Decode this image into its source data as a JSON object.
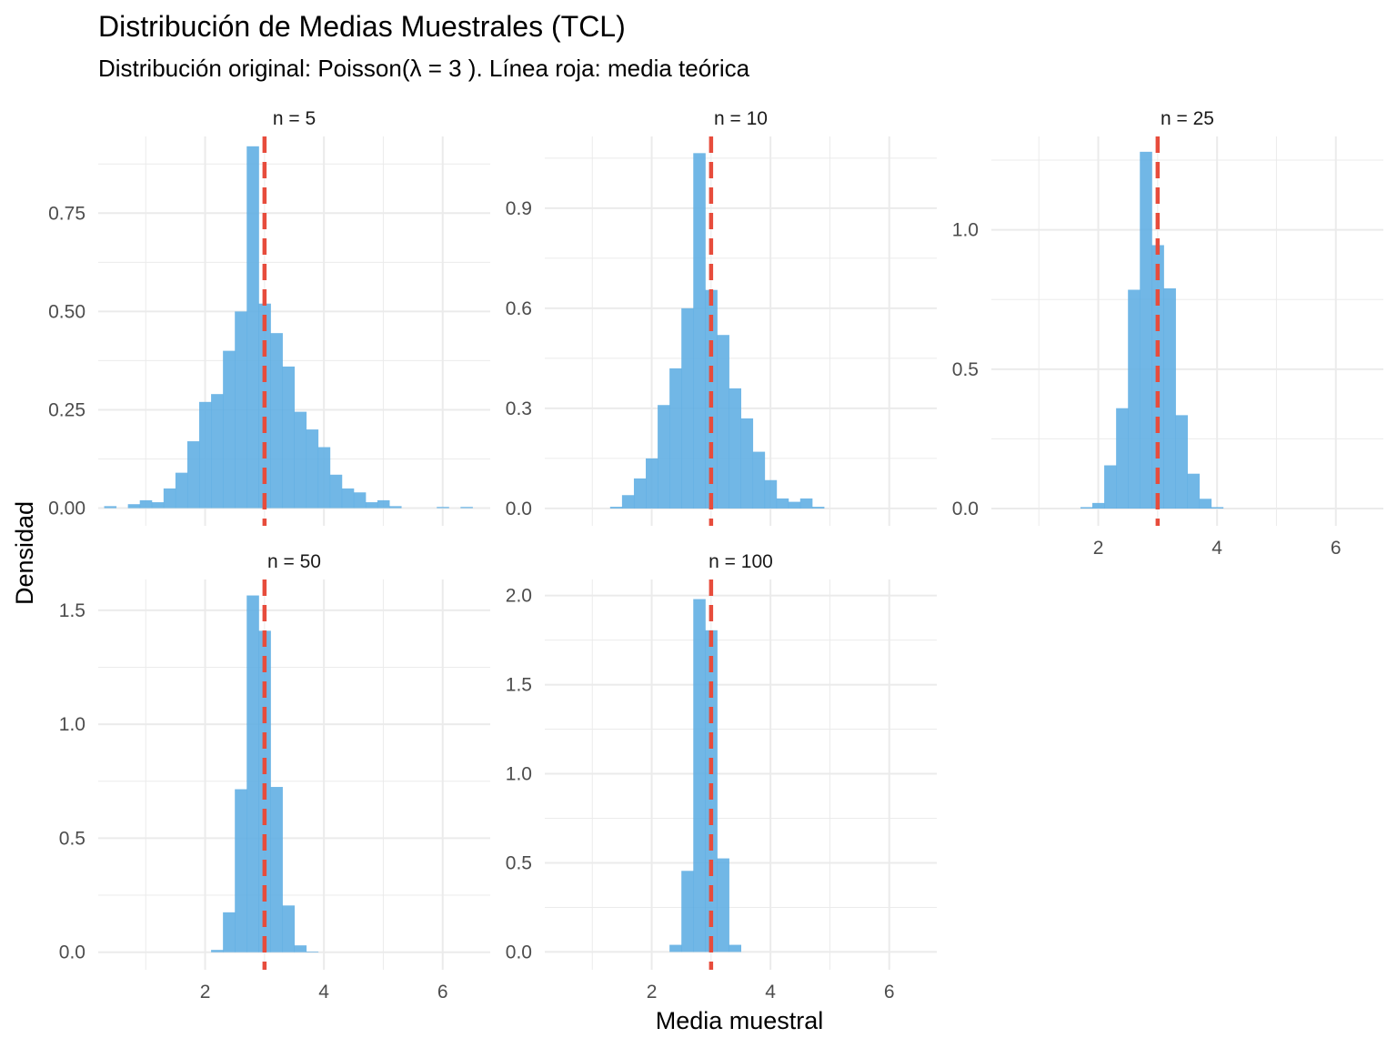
{
  "title": "Distribución de Medias Muestrales (TCL)",
  "subtitle": "Distribución original: Poisson(λ = 3 ). Línea roja: media teórica",
  "xlabel": "Media muestral",
  "ylabel": "Densidad",
  "colors": {
    "bar": "#5DADE2",
    "mean_line": "#E74C3C",
    "grid": "#ebebeb"
  },
  "chart_data": [
    {
      "type": "bar",
      "panel": "n = 5",
      "xlim": [
        0.2,
        6.8
      ],
      "ylim": [
        -0.045,
        0.945
      ],
      "x_ticks": [
        2,
        4,
        6
      ],
      "x_tick_labels": [],
      "y_ticks": [
        0,
        0.25,
        0.5,
        0.75
      ],
      "y_tick_labels": [
        "0.00",
        "0.25",
        "0.50",
        "0.75"
      ],
      "bin_width": 0.2,
      "bins": [
        {
          "x": 0.4,
          "y": 0.005
        },
        {
          "x": 0.8,
          "y": 0.01
        },
        {
          "x": 1.0,
          "y": 0.02
        },
        {
          "x": 1.2,
          "y": 0.015
        },
        {
          "x": 1.4,
          "y": 0.05
        },
        {
          "x": 1.6,
          "y": 0.09
        },
        {
          "x": 1.8,
          "y": 0.17
        },
        {
          "x": 2.0,
          "y": 0.27
        },
        {
          "x": 2.2,
          "y": 0.29
        },
        {
          "x": 2.4,
          "y": 0.4
        },
        {
          "x": 2.6,
          "y": 0.5
        },
        {
          "x": 2.8,
          "y": 0.92
        },
        {
          "x": 3.0,
          "y": 0.52
        },
        {
          "x": 3.2,
          "y": 0.445
        },
        {
          "x": 3.4,
          "y": 0.36
        },
        {
          "x": 3.6,
          "y": 0.245
        },
        {
          "x": 3.8,
          "y": 0.2
        },
        {
          "x": 4.0,
          "y": 0.155
        },
        {
          "x": 4.2,
          "y": 0.085
        },
        {
          "x": 4.4,
          "y": 0.05
        },
        {
          "x": 4.6,
          "y": 0.04
        },
        {
          "x": 4.8,
          "y": 0.015
        },
        {
          "x": 5.0,
          "y": 0.02
        },
        {
          "x": 5.2,
          "y": 0.005
        },
        {
          "x": 6.0,
          "y": 0.003
        },
        {
          "x": 6.4,
          "y": 0.003
        }
      ],
      "mean_line": 3
    },
    {
      "type": "bar",
      "panel": "n = 10",
      "xlim": [
        0.2,
        6.8
      ],
      "ylim": [
        -0.052,
        1.115
      ],
      "x_ticks": [
        2,
        4,
        6
      ],
      "x_tick_labels": [],
      "y_ticks": [
        0,
        0.3,
        0.6,
        0.9
      ],
      "y_tick_labels": [
        "0.0",
        "0.3",
        "0.6",
        "0.9"
      ],
      "bin_width": 0.2,
      "bins": [
        {
          "x": 1.4,
          "y": 0.005
        },
        {
          "x": 1.6,
          "y": 0.04
        },
        {
          "x": 1.8,
          "y": 0.09
        },
        {
          "x": 2.0,
          "y": 0.15
        },
        {
          "x": 2.2,
          "y": 0.31
        },
        {
          "x": 2.4,
          "y": 0.42
        },
        {
          "x": 2.6,
          "y": 0.6
        },
        {
          "x": 2.8,
          "y": 1.065
        },
        {
          "x": 3.0,
          "y": 0.655
        },
        {
          "x": 3.2,
          "y": 0.52
        },
        {
          "x": 3.4,
          "y": 0.36
        },
        {
          "x": 3.6,
          "y": 0.27
        },
        {
          "x": 3.8,
          "y": 0.17
        },
        {
          "x": 4.0,
          "y": 0.085
        },
        {
          "x": 4.2,
          "y": 0.03
        },
        {
          "x": 4.4,
          "y": 0.02
        },
        {
          "x": 4.6,
          "y": 0.03
        },
        {
          "x": 4.8,
          "y": 0.005
        }
      ],
      "mean_line": 3
    },
    {
      "type": "bar",
      "panel": "n = 25",
      "xlim": [
        0.2,
        6.8
      ],
      "ylim": [
        -0.062,
        1.335
      ],
      "x_ticks": [
        2,
        4,
        6
      ],
      "x_tick_labels": [
        "2",
        "4",
        "6"
      ],
      "y_ticks": [
        0,
        0.5,
        1.0
      ],
      "y_tick_labels": [
        "0.0",
        "0.5",
        "1.0"
      ],
      "bin_width": 0.2,
      "bins": [
        {
          "x": 1.8,
          "y": 0.005
        },
        {
          "x": 2.0,
          "y": 0.02
        },
        {
          "x": 2.2,
          "y": 0.155
        },
        {
          "x": 2.4,
          "y": 0.36
        },
        {
          "x": 2.6,
          "y": 0.785
        },
        {
          "x": 2.8,
          "y": 1.28
        },
        {
          "x": 3.0,
          "y": 0.945
        },
        {
          "x": 3.2,
          "y": 0.79
        },
        {
          "x": 3.4,
          "y": 0.335
        },
        {
          "x": 3.6,
          "y": 0.125
        },
        {
          "x": 3.8,
          "y": 0.035
        },
        {
          "x": 4.0,
          "y": 0.005
        }
      ],
      "mean_line": 3
    },
    {
      "type": "bar",
      "panel": "n = 50",
      "xlim": [
        0.2,
        6.8
      ],
      "ylim": [
        -0.077,
        1.635
      ],
      "x_ticks": [
        2,
        4,
        6
      ],
      "x_tick_labels": [
        "2",
        "4",
        "6"
      ],
      "y_ticks": [
        0,
        0.5,
        1.0,
        1.5
      ],
      "y_tick_labels": [
        "0.0",
        "0.5",
        "1.0",
        "1.5"
      ],
      "bin_width": 0.2,
      "bins": [
        {
          "x": 2.2,
          "y": 0.01
        },
        {
          "x": 2.4,
          "y": 0.175
        },
        {
          "x": 2.6,
          "y": 0.715
        },
        {
          "x": 2.8,
          "y": 1.565
        },
        {
          "x": 3.0,
          "y": 1.41
        },
        {
          "x": 3.2,
          "y": 0.725
        },
        {
          "x": 3.4,
          "y": 0.205
        },
        {
          "x": 3.6,
          "y": 0.03
        },
        {
          "x": 3.8,
          "y": 0.003
        }
      ],
      "mean_line": 3
    },
    {
      "type": "bar",
      "panel": "n = 100",
      "xlim": [
        0.2,
        6.8
      ],
      "ylim": [
        -0.1,
        2.09
      ],
      "x_ticks": [
        2,
        4,
        6
      ],
      "x_tick_labels": [
        "2",
        "4",
        "6"
      ],
      "y_ticks": [
        0,
        0.5,
        1.0,
        1.5,
        2.0
      ],
      "y_tick_labels": [
        "0.0",
        "0.5",
        "1.0",
        "1.5",
        "2.0"
      ],
      "bin_width": 0.2,
      "bins": [
        {
          "x": 2.4,
          "y": 0.04
        },
        {
          "x": 2.6,
          "y": 0.455
        },
        {
          "x": 2.8,
          "y": 1.98
        },
        {
          "x": 3.0,
          "y": 1.805
        },
        {
          "x": 3.2,
          "y": 0.525
        },
        {
          "x": 3.4,
          "y": 0.04
        }
      ],
      "mean_line": 3
    }
  ]
}
